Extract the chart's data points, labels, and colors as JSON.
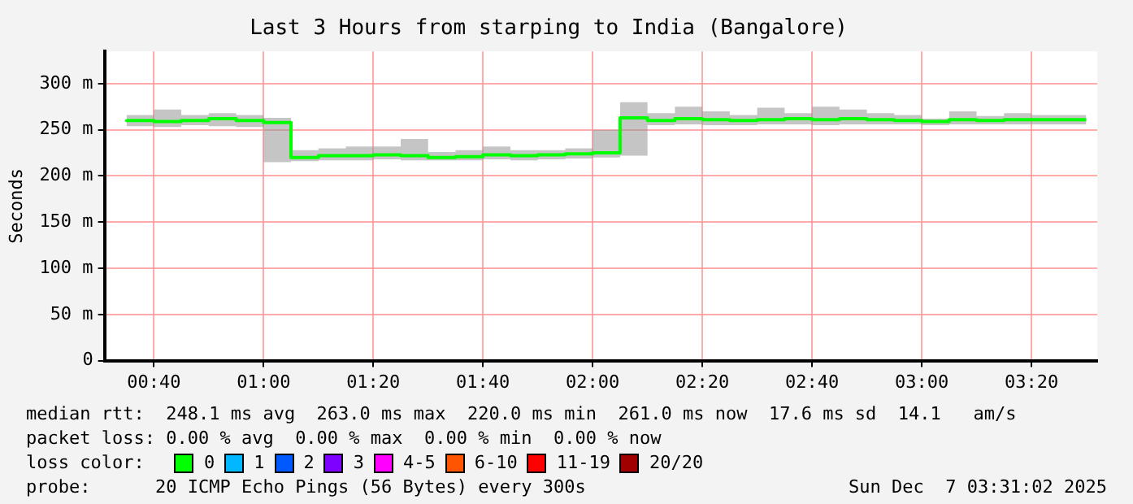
{
  "chart_data": {
    "type": "step",
    "title": "Last 3 Hours from starping to India (Bangalore)",
    "ylabel": "Seconds",
    "legend_title": "loss color:",
    "legend": "bottom",
    "grid": true,
    "marker": "none",
    "x": [
      0.5833,
      0.6667,
      0.75,
      0.8333,
      0.9167,
      1,
      1.0833,
      1.1667,
      1.25,
      1.3333,
      1.4167,
      1.5,
      1.5833,
      1.6667,
      1.75,
      1.8333,
      1.9167,
      2,
      2.0833,
      2.1667,
      2.25,
      2.3333,
      2.4167,
      2.5,
      2.5833,
      2.6667,
      2.75,
      2.8333,
      2.9167,
      3,
      3.0833,
      3.1667,
      3.25,
      3.3333,
      3.4167,
      3.5
    ],
    "xlim": [
      0.5167,
      3.5333
    ],
    "xticks": [
      {
        "value": 0.6667,
        "label": "00:40"
      },
      {
        "value": 1,
        "label": "01:00"
      },
      {
        "value": 1.3333,
        "label": "01:20"
      },
      {
        "value": 1.6667,
        "label": "01:40"
      },
      {
        "value": 2,
        "label": "02:00"
      },
      {
        "value": 2.3333,
        "label": "02:20"
      },
      {
        "value": 2.6667,
        "label": "02:40"
      },
      {
        "value": 3,
        "label": "03:00"
      },
      {
        "value": 3.3333,
        "label": "03:20"
      }
    ],
    "ylim": [
      0,
      335
    ],
    "yticks": [
      0,
      {
        "value": 50,
        "label": "50 m"
      },
      {
        "value": 100,
        "label": "100 m"
      },
      {
        "value": 150,
        "label": "150 m"
      },
      {
        "value": 200,
        "label": "200 m"
      },
      {
        "value": 250,
        "label": "250 m"
      },
      {
        "value": 300,
        "label": "300 m"
      }
    ],
    "series": [
      {
        "name": "0",
        "color": "#00ff00",
        "values": [
          261,
          260,
          259,
          260,
          262,
          260,
          258,
          220,
          222,
          222,
          223,
          222,
          220,
          221,
          223,
          222,
          223,
          224,
          225,
          263,
          260,
          262,
          261,
          260,
          261,
          262,
          261,
          262,
          261,
          260,
          259,
          261,
          260,
          261,
          261,
          261
        ],
        "lower": [
          255,
          254,
          253,
          255,
          254,
          253,
          215,
          216,
          217,
          217,
          218,
          217,
          217,
          217,
          218,
          217,
          218,
          219,
          220,
          222,
          255,
          256,
          255,
          255,
          256,
          256,
          255,
          256,
          256,
          256,
          255,
          256,
          256,
          256,
          256,
          256
        ],
        "upper": [
          266,
          266,
          272,
          266,
          268,
          266,
          263,
          228,
          230,
          232,
          232,
          240,
          226,
          228,
          232,
          228,
          228,
          230,
          250,
          280,
          268,
          275,
          270,
          266,
          274,
          268,
          275,
          272,
          268,
          266,
          262,
          270,
          265,
          268,
          266,
          266
        ]
      },
      {
        "name": "1",
        "color": "#00b8ff",
        "values": [
          null,
          null,
          null,
          null,
          null,
          null,
          null,
          null,
          null,
          null,
          null,
          null,
          null,
          null,
          null,
          null,
          null,
          null,
          null,
          null,
          null,
          null,
          null,
          null,
          null,
          null,
          null,
          null,
          null,
          null,
          null,
          null,
          null,
          null,
          null,
          null
        ]
      },
      {
        "name": "2",
        "color": "#0059ff",
        "values": [
          null,
          null,
          null,
          null,
          null,
          null,
          null,
          null,
          null,
          null,
          null,
          null,
          null,
          null,
          null,
          null,
          null,
          null,
          null,
          null,
          null,
          null,
          null,
          null,
          null,
          null,
          null,
          null,
          null,
          null,
          null,
          null,
          null,
          null,
          null,
          null
        ]
      },
      {
        "name": "3",
        "color": "#7e00ff",
        "values": [
          null,
          null,
          null,
          null,
          null,
          null,
          null,
          null,
          null,
          null,
          null,
          null,
          null,
          null,
          null,
          null,
          null,
          null,
          null,
          null,
          null,
          null,
          null,
          null,
          null,
          null,
          null,
          null,
          null,
          null,
          null,
          null,
          null,
          null,
          null,
          null
        ]
      },
      {
        "name": "4-5",
        "color": "#ff00ff",
        "values": [
          null,
          null,
          null,
          null,
          null,
          null,
          null,
          null,
          null,
          null,
          null,
          null,
          null,
          null,
          null,
          null,
          null,
          null,
          null,
          null,
          null,
          null,
          null,
          null,
          null,
          null,
          null,
          null,
          null,
          null,
          null,
          null,
          null,
          null,
          null,
          null
        ]
      },
      {
        "name": "6-10",
        "color": "#ff5500",
        "values": [
          null,
          null,
          null,
          null,
          null,
          null,
          null,
          null,
          null,
          null,
          null,
          null,
          null,
          null,
          null,
          null,
          null,
          null,
          null,
          null,
          null,
          null,
          null,
          null,
          null,
          null,
          null,
          null,
          null,
          null,
          null,
          null,
          null,
          null,
          null,
          null
        ]
      },
      {
        "name": "11-19",
        "color": "#ff0000",
        "values": [
          null,
          null,
          null,
          null,
          null,
          null,
          null,
          null,
          null,
          null,
          null,
          null,
          null,
          null,
          null,
          null,
          null,
          null,
          null,
          null,
          null,
          null,
          null,
          null,
          null,
          null,
          null,
          null,
          null,
          null,
          null,
          null,
          null,
          null,
          null,
          null
        ]
      },
      {
        "name": "20/20",
        "color": "#a10000",
        "values": [
          null,
          null,
          null,
          null,
          null,
          null,
          null,
          null,
          null,
          null,
          null,
          null,
          null,
          null,
          null,
          null,
          null,
          null,
          null,
          null,
          null,
          null,
          null,
          null,
          null,
          null,
          null,
          null,
          null,
          null,
          null,
          null,
          null,
          null,
          null,
          null
        ]
      }
    ],
    "annotations": [
      "median rtt:  248.1 ms avg  263.0 ms max  220.0 ms min  261.0 ms now  17.6 ms sd  14.1   am/s",
      "packet loss: 0.00 % avg  0.00 % max  0.00 % min  0.00 % now",
      "probe:      20 ICMP Echo Pings (56 Bytes) every 300s",
      "Sun Dec  7 03:31:02 2025"
    ]
  }
}
